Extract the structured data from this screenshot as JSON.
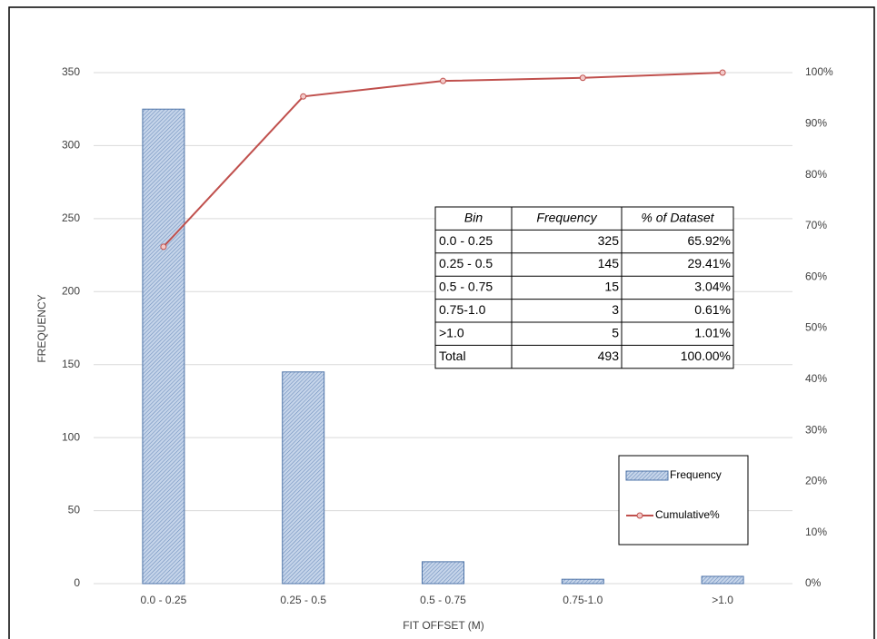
{
  "chart_data": {
    "type": "bar",
    "categories": [
      "0.0 - 0.25",
      "0.25 - 0.5",
      "0.5 - 0.75",
      "0.75-1.0",
      ">1.0"
    ],
    "x_label": "FIT OFFSET (M)",
    "y_label": "FREQUENCY",
    "series": [
      {
        "name": "Frequency",
        "type": "bar",
        "color": "#4f74a8",
        "values": [
          325,
          145,
          15,
          3,
          5
        ]
      },
      {
        "name": "Cumulative%",
        "type": "line",
        "axis": "y2",
        "color": "#c0504d",
        "values": [
          65.92,
          95.33,
          98.37,
          98.98,
          100
        ]
      }
    ],
    "ylim": [
      0,
      350
    ],
    "yticks": [
      0,
      50,
      100,
      150,
      200,
      250,
      300,
      350
    ],
    "y2lim": [
      0,
      100
    ],
    "y2ticks": [
      {
        "value": 0,
        "label": "0%"
      },
      {
        "value": 10,
        "label": "10%"
      },
      {
        "value": 20,
        "label": "20%"
      },
      {
        "value": 30,
        "label": "30%"
      },
      {
        "value": 40,
        "label": "40%"
      },
      {
        "value": 50,
        "label": "50%"
      },
      {
        "value": 60,
        "label": "60%"
      },
      {
        "value": 70,
        "label": "70%"
      },
      {
        "value": 80,
        "label": "80%"
      },
      {
        "value": 90,
        "label": "90%"
      },
      {
        "value": 100,
        "label": "100%"
      }
    ],
    "grid": true,
    "legend": "lower right",
    "table": {
      "header": [
        "Bin",
        "Frequency",
        "% of Dataset"
      ],
      "rows": [
        [
          "0.0 - 0.25",
          "325",
          "65.92%"
        ],
        [
          "0.25 - 0.5",
          "145",
          "29.41%"
        ],
        [
          "0.5 - 0.75",
          "15",
          "3.04%"
        ],
        [
          "0.75-1.0",
          "3",
          "0.61%"
        ],
        [
          ">1.0",
          "5",
          "1.01%"
        ],
        [
          "Total",
          "493",
          "100.00%"
        ]
      ]
    }
  }
}
